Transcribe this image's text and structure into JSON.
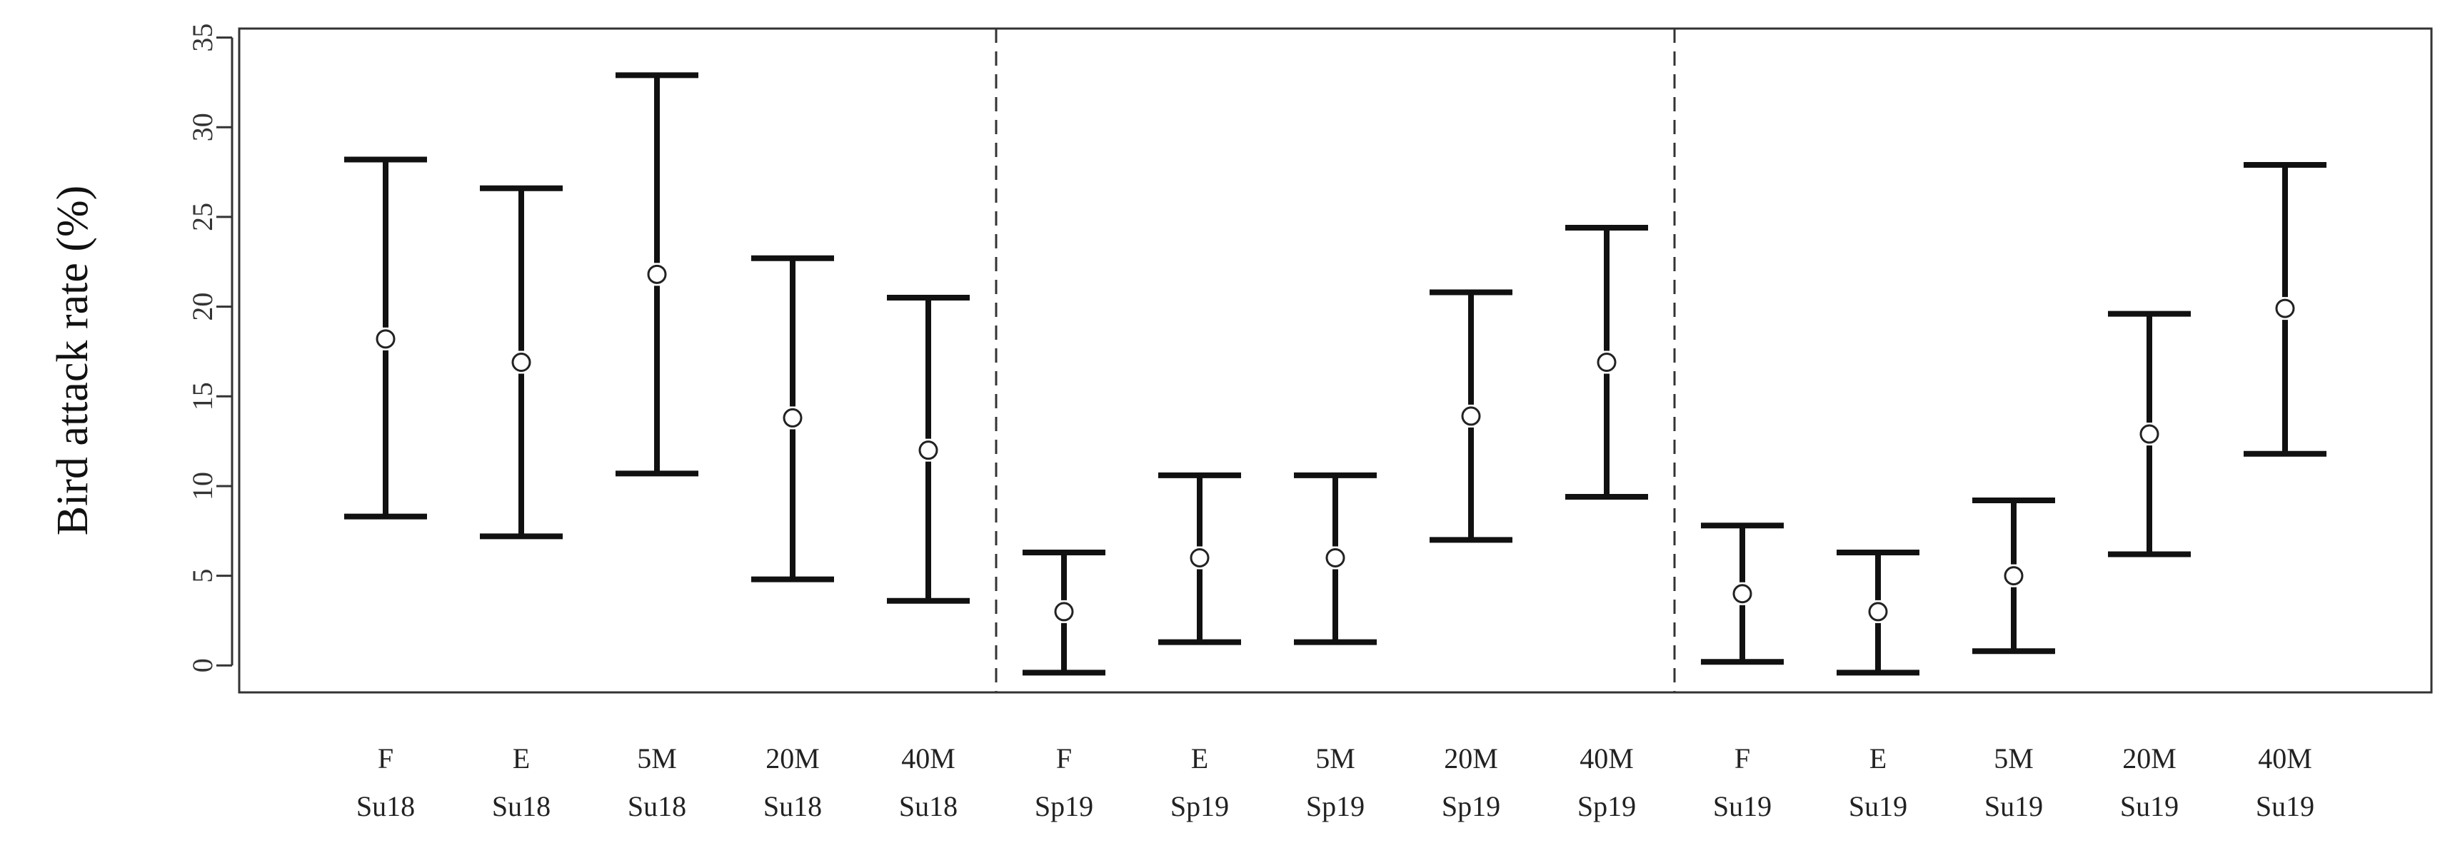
{
  "chart_data": {
    "type": "errorbar",
    "ylabel": "Bird attack rate (%)",
    "xlabel": "",
    "ylim": [
      -1.5,
      35.5
    ],
    "yticks": [
      0,
      5,
      10,
      15,
      20,
      25,
      30,
      35
    ],
    "grid": false,
    "legend": "none",
    "group_dividers_after": [
      5,
      10
    ],
    "categories": [
      {
        "line1": "F",
        "line2": "Su18"
      },
      {
        "line1": "E",
        "line2": "Su18"
      },
      {
        "line1": "5M",
        "line2": "Su18"
      },
      {
        "line1": "20M",
        "line2": "Su18"
      },
      {
        "line1": "40M",
        "line2": "Su18"
      },
      {
        "line1": "F",
        "line2": "Sp19"
      },
      {
        "line1": "E",
        "line2": "Sp19"
      },
      {
        "line1": "5M",
        "line2": "Sp19"
      },
      {
        "line1": "20M",
        "line2": "Sp19"
      },
      {
        "line1": "40M",
        "line2": "Sp19"
      },
      {
        "line1": "F",
        "line2": "Su19"
      },
      {
        "line1": "E",
        "line2": "Su19"
      },
      {
        "line1": "5M",
        "line2": "Su19"
      },
      {
        "line1": "20M",
        "line2": "Su19"
      },
      {
        "line1": "40M",
        "line2": "Su19"
      }
    ],
    "points": [
      {
        "value": 18.2,
        "lower": 8.3,
        "upper": 28.2
      },
      {
        "value": 16.9,
        "lower": 7.2,
        "upper": 26.6
      },
      {
        "value": 21.8,
        "lower": 10.7,
        "upper": 32.9
      },
      {
        "value": 13.8,
        "lower": 4.8,
        "upper": 22.7
      },
      {
        "value": 12.0,
        "lower": 3.6,
        "upper": 20.5
      },
      {
        "value": 3.0,
        "lower": -0.4,
        "upper": 6.3
      },
      {
        "value": 6.0,
        "lower": 1.3,
        "upper": 10.6
      },
      {
        "value": 6.0,
        "lower": 1.3,
        "upper": 10.6
      },
      {
        "value": 13.9,
        "lower": 7.0,
        "upper": 20.8
      },
      {
        "value": 16.9,
        "lower": 9.4,
        "upper": 24.4
      },
      {
        "value": 4.0,
        "lower": 0.2,
        "upper": 7.8
      },
      {
        "value": 3.0,
        "lower": -0.4,
        "upper": 6.3
      },
      {
        "value": 5.0,
        "lower": 0.8,
        "upper": 9.2
      },
      {
        "value": 12.9,
        "lower": 6.2,
        "upper": 19.6
      },
      {
        "value": 19.9,
        "lower": 11.8,
        "upper": 27.9
      }
    ]
  }
}
